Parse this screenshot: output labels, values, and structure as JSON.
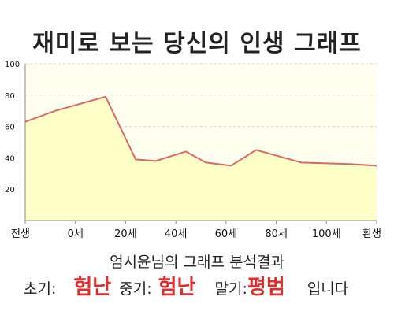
{
  "title": "재미로 보는 당신의 인생 그래프",
  "chart_data": {
    "type": "area",
    "title": "재미로 보는 당신의 인생 그래프",
    "x_labels": [
      "전생",
      "0세",
      "20세",
      "40세",
      "60세",
      "80세",
      "100세",
      "환생"
    ],
    "ylim": [
      0,
      100
    ],
    "y_ticks": [
      20,
      40,
      60,
      80,
      100
    ],
    "grid": true,
    "points": [
      {
        "t": 0.0,
        "y": 63
      },
      {
        "t": 0.6,
        "y": 70
      },
      {
        "t": 1.6,
        "y": 79
      },
      {
        "t": 2.2,
        "y": 39
      },
      {
        "t": 2.6,
        "y": 38
      },
      {
        "t": 3.2,
        "y": 44
      },
      {
        "t": 3.6,
        "y": 37
      },
      {
        "t": 4.1,
        "y": 35
      },
      {
        "t": 4.6,
        "y": 45
      },
      {
        "t": 5.5,
        "y": 37
      },
      {
        "t": 6.5,
        "y": 36
      },
      {
        "t": 7.0,
        "y": 35
      }
    ],
    "colors": {
      "line": "#e06666",
      "fill": "#ffffc8",
      "plot_bg": "#fffff0",
      "grid": "#d8d8d8"
    }
  },
  "result": {
    "heading": "엄시윤님의 그래프 분석결과",
    "early_label": "초기:",
    "early_value": "험난",
    "middle_label": "중기:",
    "middle_value": "험난",
    "late_label": "말기:",
    "late_value": "평범",
    "ending": "입니다"
  }
}
